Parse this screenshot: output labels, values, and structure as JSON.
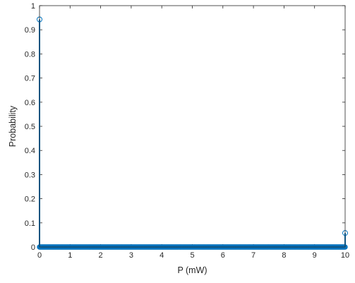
{
  "chart_data": {
    "type": "scatter",
    "plot_style": "stem",
    "marker": "open-circle",
    "xlabel": "P (mW)",
    "ylabel": "Probability",
    "xlim": [
      0,
      10
    ],
    "ylim": [
      0,
      1
    ],
    "x_ticks": [
      0,
      1,
      2,
      3,
      4,
      5,
      6,
      7,
      8,
      9,
      10
    ],
    "y_ticks": [
      0,
      0.1,
      0.2,
      0.3,
      0.4,
      0.5,
      0.6,
      0.7,
      0.8,
      0.9,
      1
    ],
    "x_tick_labels": [
      "0",
      "1",
      "2",
      "3",
      "4",
      "5",
      "6",
      "7",
      "8",
      "9",
      "10"
    ],
    "y_tick_labels": [
      "0",
      "0.1",
      "0.2",
      "0.3",
      "0.4",
      "0.5",
      "0.6",
      "0.7",
      "0.8",
      "0.9",
      "1"
    ],
    "grid": false,
    "box": true,
    "series": [
      {
        "color": "#0072BD",
        "points": [
          {
            "x": 0,
            "y": 0.943
          },
          {
            "x": 10,
            "y": 0.058
          }
        ],
        "zero_samples": {
          "x_start": 0,
          "x_end": 10,
          "step": 0.02,
          "y": 0
        }
      }
    ]
  }
}
